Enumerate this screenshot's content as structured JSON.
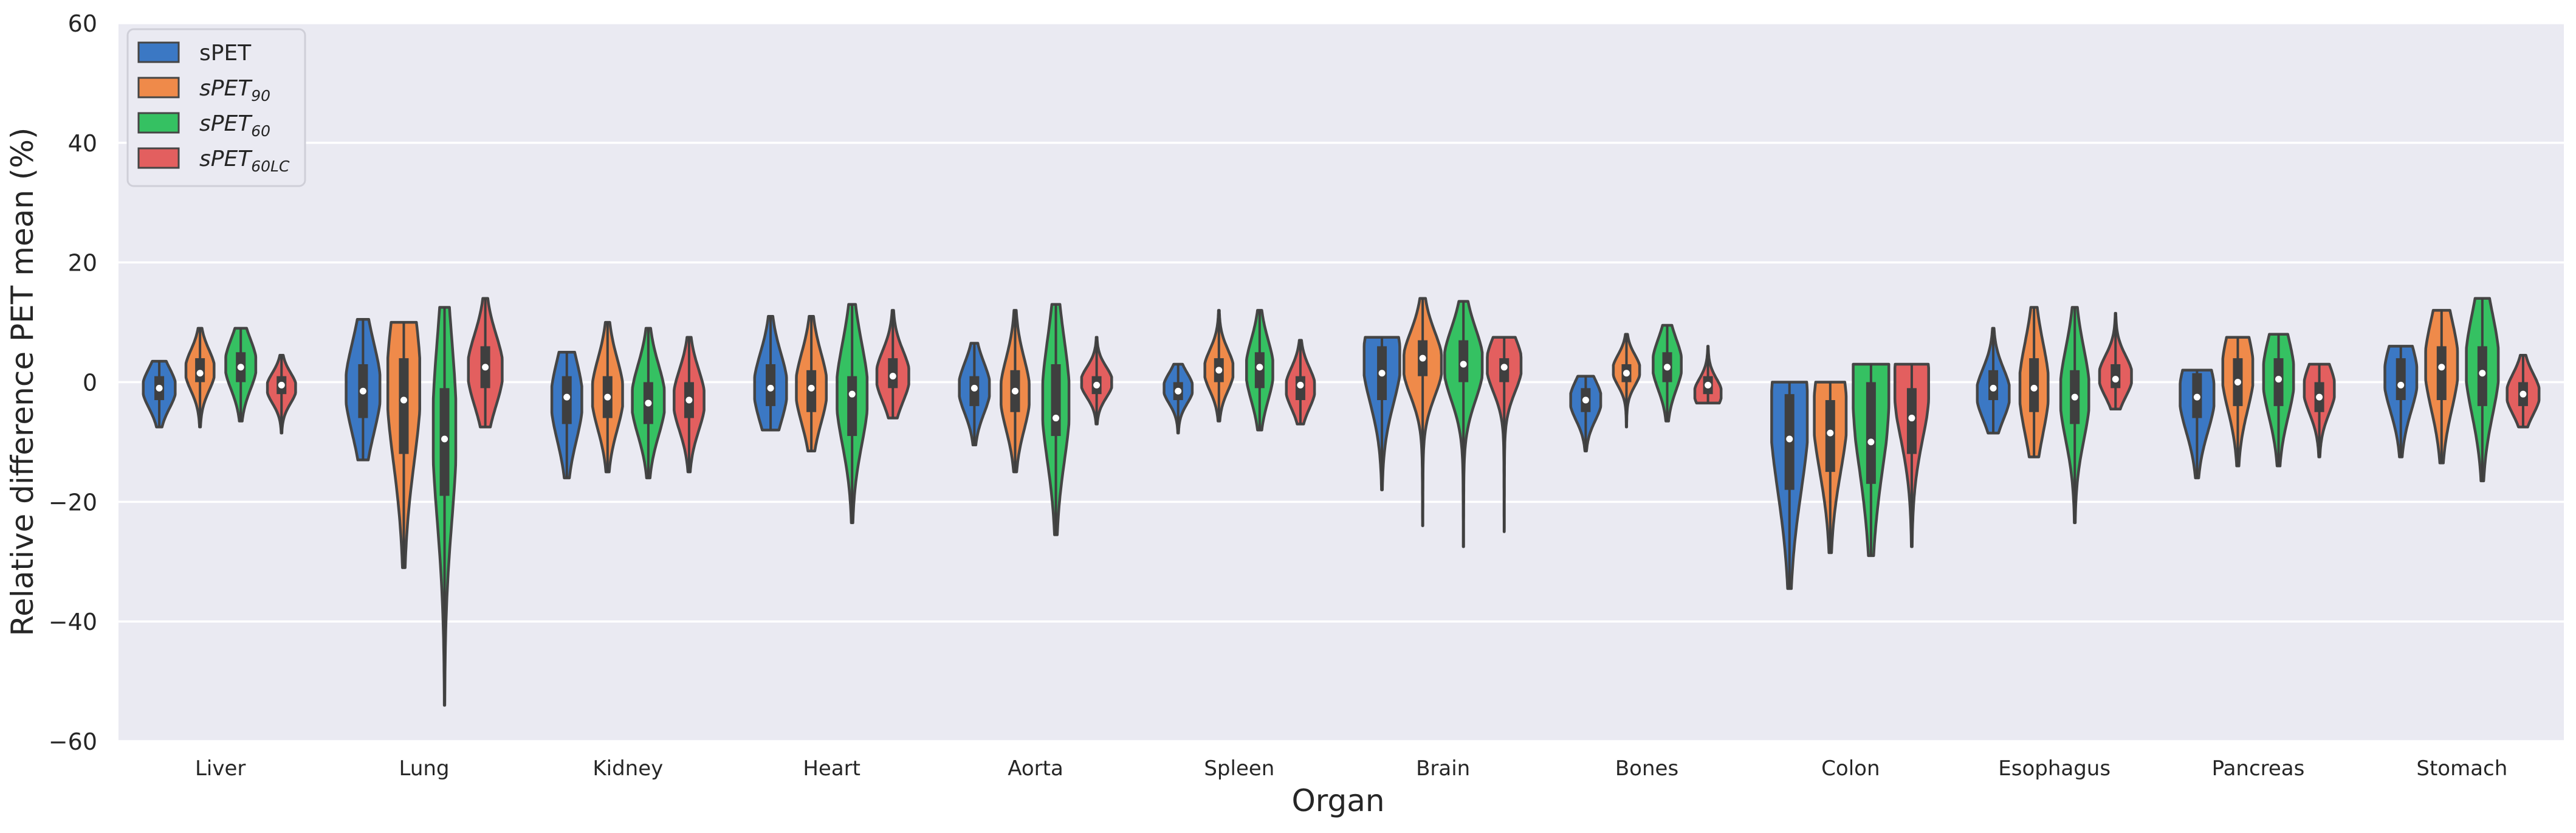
{
  "chart_data": {
    "type": "violin",
    "title": "",
    "xlabel": "Organ",
    "ylabel": "Relative difference PET mean (%)",
    "ylim": [
      -60,
      60
    ],
    "yticks": [
      -60,
      -40,
      -20,
      0,
      20,
      40,
      60
    ],
    "ytick_labels": [
      "−60",
      "−40",
      "−20",
      "0",
      "20",
      "40",
      "60"
    ],
    "grid": true,
    "legend_position": "top-left",
    "categories": [
      "Liver",
      "Lung",
      "Kidney",
      "Heart",
      "Aorta",
      "Spleen",
      "Brain",
      "Bones",
      "Colon",
      "Esophagus",
      "Pancreas",
      "Stomach"
    ],
    "series": [
      {
        "name": "sPET",
        "label_base": "sPET",
        "label_sub": "",
        "color": "#3b78c4",
        "violins": [
          {
            "min": -7.5,
            "q1": -3,
            "median": -1,
            "q3": 1,
            "max": 3.5,
            "mode": -1,
            "bw": 0.85
          },
          {
            "min": -13,
            "q1": -6,
            "median": -1.5,
            "q3": 3,
            "max": 10.5,
            "mode": -1,
            "bw": 0.9
          },
          {
            "min": -16,
            "q1": -7,
            "median": -2.5,
            "q3": 1,
            "max": 5,
            "mode": -3,
            "bw": 0.8
          },
          {
            "min": -8,
            "q1": -4,
            "median": -1,
            "q3": 3,
            "max": 11,
            "mode": -1,
            "bw": 0.85
          },
          {
            "min": -10.5,
            "q1": -4,
            "median": -1,
            "q3": 1,
            "max": 6.5,
            "mode": -1,
            "bw": 0.8
          },
          {
            "min": -8.5,
            "q1": -3,
            "median": -1.5,
            "q3": 0,
            "max": 3,
            "mode": -1,
            "bw": 0.75
          },
          {
            "min": -18,
            "q1": -3,
            "median": 1.5,
            "q3": 6,
            "max": 7.5,
            "mode": 4,
            "bw": 0.95
          },
          {
            "min": -11.5,
            "q1": -5,
            "median": -3,
            "q3": -1,
            "max": 1,
            "mode": -3,
            "bw": 0.8
          },
          {
            "min": -34.5,
            "q1": -18,
            "median": -9.5,
            "q3": -2,
            "max": 0,
            "mode": -5,
            "bw": 0.95
          },
          {
            "min": -8.5,
            "q1": -3,
            "median": -1,
            "q3": 2,
            "max": 9,
            "mode": -2,
            "bw": 0.85
          },
          {
            "min": -16,
            "q1": -6,
            "median": -2.5,
            "q3": 1.5,
            "max": 2,
            "mode": -2,
            "bw": 0.9
          },
          {
            "min": -12.5,
            "q1": -3,
            "median": -0.5,
            "q3": 4,
            "max": 6,
            "mode": 1,
            "bw": 0.85
          }
        ]
      },
      {
        "name": "sPET90",
        "label_base": "sPET",
        "label_sub": "90",
        "color": "#ef8a4a",
        "violins": [
          {
            "min": -7.5,
            "q1": 0,
            "median": 1.5,
            "q3": 4,
            "max": 9,
            "mode": 2,
            "bw": 0.75
          },
          {
            "min": -31,
            "q1": -12,
            "median": -3,
            "q3": 4,
            "max": 10,
            "mode": 0,
            "bw": 0.85
          },
          {
            "min": -15,
            "q1": -6,
            "median": -2.5,
            "q3": 1,
            "max": 10,
            "mode": -2,
            "bw": 0.8
          },
          {
            "min": -11.5,
            "q1": -5,
            "median": -1,
            "q3": 2,
            "max": 11,
            "mode": -1,
            "bw": 0.8
          },
          {
            "min": -15,
            "q1": -5,
            "median": -1.5,
            "q3": 2,
            "max": 12,
            "mode": -2,
            "bw": 0.75
          },
          {
            "min": -6.5,
            "q1": 0,
            "median": 2,
            "q3": 4,
            "max": 12,
            "mode": 2,
            "bw": 0.75
          },
          {
            "min": -24,
            "q1": 1,
            "median": 4,
            "q3": 7,
            "max": 14,
            "mode": 3,
            "bw": 1.0
          },
          {
            "min": -7.5,
            "q1": 0,
            "median": 1.5,
            "q3": 3,
            "max": 8,
            "mode": 2,
            "bw": 0.7
          },
          {
            "min": -28.5,
            "q1": -15,
            "median": -8.5,
            "q3": -3,
            "max": 0,
            "mode": -5,
            "bw": 0.85
          },
          {
            "min": -12.5,
            "q1": -5,
            "median": -1,
            "q3": 4,
            "max": 12.5,
            "mode": -1,
            "bw": 0.75
          },
          {
            "min": -14,
            "q1": -4,
            "median": 0,
            "q3": 4,
            "max": 7.5,
            "mode": 2,
            "bw": 0.8
          },
          {
            "min": -13.5,
            "q1": -3,
            "median": 2.5,
            "q3": 6,
            "max": 12,
            "mode": 3,
            "bw": 0.85
          }
        ]
      },
      {
        "name": "sPET60",
        "label_base": "sPET",
        "label_sub": "60",
        "color": "#35c162",
        "violins": [
          {
            "min": -6.5,
            "q1": 0,
            "median": 2.5,
            "q3": 5,
            "max": 9,
            "mode": 3,
            "bw": 0.8
          },
          {
            "min": -54,
            "q1": -19,
            "median": -9.5,
            "q3": -1,
            "max": 12.5,
            "mode": -8,
            "bw": 0.6
          },
          {
            "min": -16,
            "q1": -7,
            "median": -3.5,
            "q3": 0,
            "max": 9,
            "mode": -3,
            "bw": 0.85
          },
          {
            "min": -23.5,
            "q1": -9,
            "median": -2,
            "q3": 1,
            "max": 13,
            "mode": -2,
            "bw": 0.8
          },
          {
            "min": -25.5,
            "q1": -9,
            "median": -6,
            "q3": 3,
            "max": 13,
            "mode": -3,
            "bw": 0.7
          },
          {
            "min": -8,
            "q1": -1,
            "median": 2.5,
            "q3": 5,
            "max": 12,
            "mode": 2,
            "bw": 0.7
          },
          {
            "min": -27.5,
            "q1": 0,
            "median": 3,
            "q3": 7,
            "max": 13.5,
            "mode": 3,
            "bw": 1.0
          },
          {
            "min": -6.5,
            "q1": 0,
            "median": 2.5,
            "q3": 5,
            "max": 9.5,
            "mode": 3,
            "bw": 0.75
          },
          {
            "min": -29,
            "q1": -17,
            "median": -10,
            "q3": 0,
            "max": 3,
            "mode": 0,
            "bw": 0.95
          },
          {
            "min": -23.5,
            "q1": -7,
            "median": -2.5,
            "q3": 2,
            "max": 12.5,
            "mode": -2,
            "bw": 0.75
          },
          {
            "min": -14,
            "q1": -4,
            "median": 0.5,
            "q3": 4,
            "max": 8,
            "mode": 1,
            "bw": 0.8
          },
          {
            "min": -16.5,
            "q1": -4,
            "median": 1.5,
            "q3": 6,
            "max": 14,
            "mode": 3,
            "bw": 0.85
          }
        ]
      },
      {
        "name": "sPET60LC",
        "label_base": "sPET",
        "label_sub": "60LC",
        "color": "#e35f5f",
        "violins": [
          {
            "min": -8.5,
            "q1": -2,
            "median": -0.5,
            "q3": 1,
            "max": 4.5,
            "mode": -1,
            "bw": 0.75
          },
          {
            "min": -7.5,
            "q1": -1,
            "median": 2.5,
            "q3": 6,
            "max": 14,
            "mode": 2,
            "bw": 0.9
          },
          {
            "min": -15,
            "q1": -6,
            "median": -3,
            "q3": 0,
            "max": 7.5,
            "mode": -3,
            "bw": 0.8
          },
          {
            "min": -6,
            "q1": -1,
            "median": 1,
            "q3": 4,
            "max": 12,
            "mode": 1,
            "bw": 0.85
          },
          {
            "min": -7,
            "q1": -2,
            "median": -0.5,
            "q3": 1,
            "max": 7.5,
            "mode": 0,
            "bw": 0.8
          },
          {
            "min": -7,
            "q1": -3,
            "median": -0.5,
            "q3": 1,
            "max": 7,
            "mode": -1,
            "bw": 0.75
          },
          {
            "min": -25,
            "q1": 0,
            "median": 2.5,
            "q3": 4,
            "max": 7.5,
            "mode": 3,
            "bw": 0.9
          },
          {
            "min": -3.5,
            "q1": -2,
            "median": -0.5,
            "q3": 1,
            "max": 6,
            "mode": -2,
            "bw": 0.7
          },
          {
            "min": -27.5,
            "q1": -12,
            "median": -6,
            "q3": -1,
            "max": 3,
            "mode": 0,
            "bw": 0.9
          },
          {
            "min": -4.5,
            "q1": -1,
            "median": 0.5,
            "q3": 3,
            "max": 11.5,
            "mode": 1,
            "bw": 0.85
          },
          {
            "min": -12.5,
            "q1": -5,
            "median": -2.5,
            "q3": 0,
            "max": 3,
            "mode": -1,
            "bw": 0.8
          },
          {
            "min": -7.5,
            "q1": -4,
            "median": -2,
            "q3": 0,
            "max": 4.5,
            "mode": -2,
            "bw": 0.85
          }
        ]
      }
    ]
  }
}
